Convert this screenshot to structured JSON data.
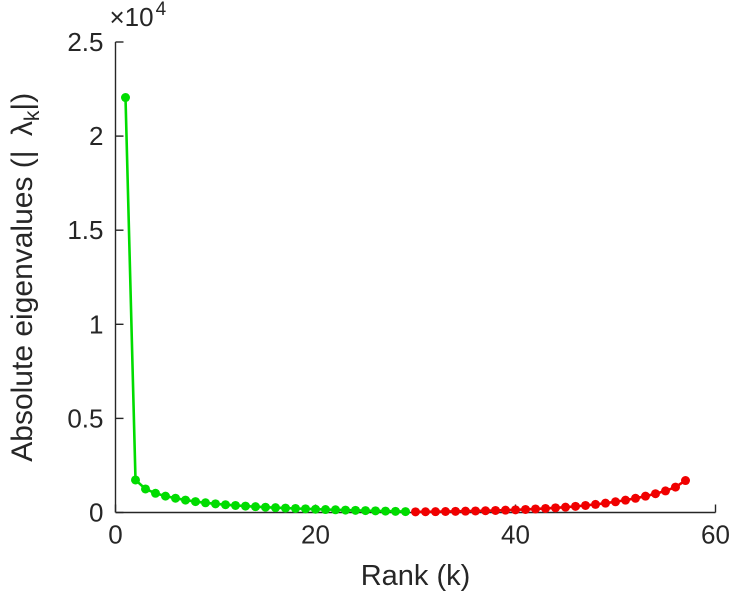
{
  "chart_data": {
    "type": "line",
    "title": "",
    "xlabel": "Rank (k)",
    "ylabel_parts": {
      "pre": "Absolute eigenvalues (| ",
      "lambda": "λ",
      "sub": "k",
      "post": "|)"
    },
    "y_exponent": {
      "base": "×10",
      "sup": "4"
    },
    "xlim": [
      0,
      60
    ],
    "ylim": [
      0,
      25000
    ],
    "xticks": [
      0,
      20,
      40,
      60
    ],
    "xtick_labels": [
      "0",
      "20",
      "40",
      "60"
    ],
    "yticks": [
      0,
      5000,
      10000,
      15000,
      20000,
      25000
    ],
    "ytick_labels": [
      "0",
      "0.5",
      "1",
      "1.5",
      "2",
      "2.5"
    ],
    "grid": false,
    "legend": "none",
    "axis_color": "#262626",
    "background_color": "#ffffff",
    "series": [
      {
        "name": "leading-eigenvalues-green",
        "color": "#00dc00",
        "x": [
          1,
          2,
          3,
          4,
          5,
          6,
          7,
          8,
          9,
          10,
          11,
          12,
          13,
          14,
          15,
          16,
          17,
          18,
          19,
          20,
          21,
          22,
          23,
          24,
          25,
          26,
          27,
          28,
          29
        ],
        "y": [
          22050,
          1730,
          1250,
          1020,
          870,
          760,
          660,
          580,
          515,
          460,
          415,
          375,
          340,
          310,
          282,
          257,
          234,
          213,
          194,
          176,
          159,
          143,
          128,
          114,
          100,
          87,
          74,
          61,
          48
        ]
      },
      {
        "name": "trailing-eigenvalues-red",
        "color": "#f00000",
        "x": [
          30,
          31,
          32,
          33,
          34,
          35,
          36,
          37,
          38,
          39,
          40,
          41,
          42,
          43,
          44,
          45,
          46,
          47,
          48,
          49,
          50,
          51,
          52,
          53,
          54,
          55,
          56,
          57
        ],
        "y": [
          35,
          40,
          46,
          53,
          61,
          70,
          81,
          93,
          107,
          123,
          141,
          162,
          187,
          215,
          247,
          284,
          326,
          375,
          431,
          496,
          570,
          656,
          754,
          867,
          997,
          1147,
          1350,
          1700
        ]
      }
    ]
  }
}
